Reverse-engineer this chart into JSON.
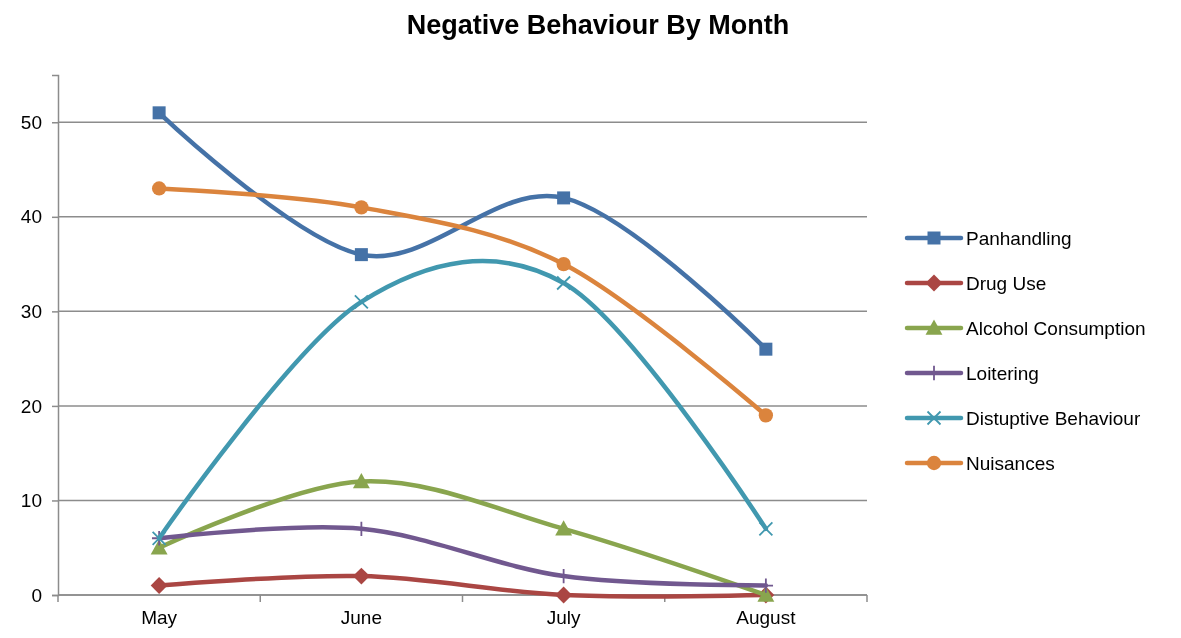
{
  "chart_data": {
    "type": "line",
    "title": "Negative Behaviour By Month",
    "categories": [
      "May",
      "June",
      "July",
      "August"
    ],
    "series": [
      {
        "name": "Panhandling",
        "color": "#4572a7",
        "marker": "square",
        "values": [
          51,
          36,
          42,
          26
        ]
      },
      {
        "name": "Drug Use",
        "color": "#aa4643",
        "marker": "diamond",
        "values": [
          1,
          2,
          0,
          0
        ]
      },
      {
        "name": "Alcohol Consumption",
        "color": "#89a54e",
        "marker": "triangle",
        "values": [
          5,
          12,
          7,
          0
        ]
      },
      {
        "name": "Loitering",
        "color": "#71588f",
        "marker": "plus",
        "values": [
          6,
          7,
          2,
          1
        ]
      },
      {
        "name": "Distuptive Behaviour",
        "color": "#4198af",
        "marker": "cross",
        "values": [
          6,
          31,
          33,
          7
        ]
      },
      {
        "name": "Nuisances",
        "color": "#db843d",
        "marker": "circle",
        "values": [
          43,
          41,
          35,
          19
        ]
      }
    ],
    "ylim": [
      0,
      55
    ],
    "yticks": [
      0,
      10,
      20,
      30,
      40,
      50
    ],
    "grid": "y",
    "legend": "right"
  }
}
